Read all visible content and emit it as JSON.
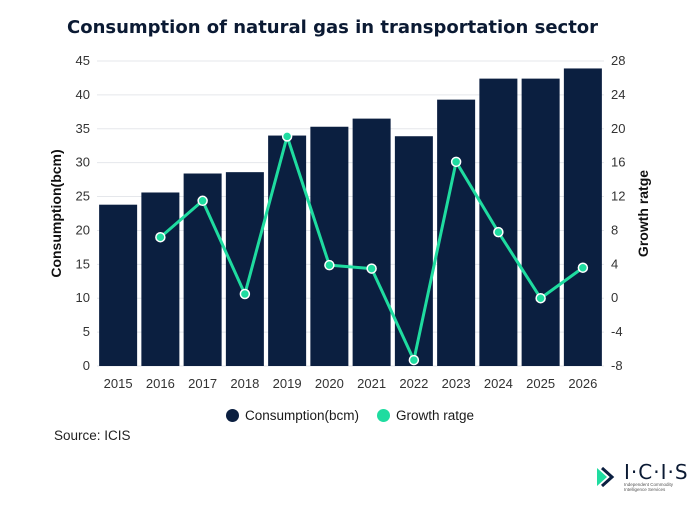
{
  "title": "Consumption of natural gas in transportation sector",
  "legend": {
    "consumption": "Consumption(bcm)",
    "growth": "Growth ratge"
  },
  "source": "Source: ICIS",
  "logo": {
    "word": "I·C·I·S",
    "tagline_1": "Independent Commodity",
    "tagline_2": "Intelligence Services"
  },
  "colors": {
    "bar": "#0b1f40",
    "line": "#1fdca0",
    "grid": "#e5e7eb"
  },
  "chart_data": {
    "type": "bar",
    "title": "Consumption of natural gas in transportation sector",
    "categories": [
      "2015",
      "2016",
      "2017",
      "2018",
      "2019",
      "2020",
      "2021",
      "2022",
      "2023",
      "2024",
      "2025",
      "2026"
    ],
    "series": [
      {
        "name": "Consumption(bcm)",
        "type": "bar",
        "axis": "left",
        "values": [
          23.8,
          25.6,
          28.4,
          28.6,
          34.0,
          35.3,
          36.5,
          33.9,
          39.3,
          42.4,
          42.4,
          43.9
        ]
      },
      {
        "name": "Growth ratge",
        "type": "line",
        "axis": "right",
        "values": [
          null,
          7.2,
          11.5,
          0.5,
          19.1,
          3.9,
          3.5,
          -7.3,
          16.1,
          7.8,
          0.0,
          3.6
        ]
      }
    ],
    "ylabel": "Consumption(bcm)",
    "y2label": "Growth ratge",
    "ylim": [
      0,
      45
    ],
    "y2lim": [
      -8,
      28
    ],
    "yticks": [
      "0",
      "5",
      "10",
      "15",
      "20",
      "25",
      "30",
      "35",
      "40",
      "45"
    ],
    "y2ticks": [
      "-8",
      "-4",
      "0",
      "4",
      "8",
      "12",
      "16",
      "20",
      "24",
      "28"
    ],
    "grid": true
  }
}
